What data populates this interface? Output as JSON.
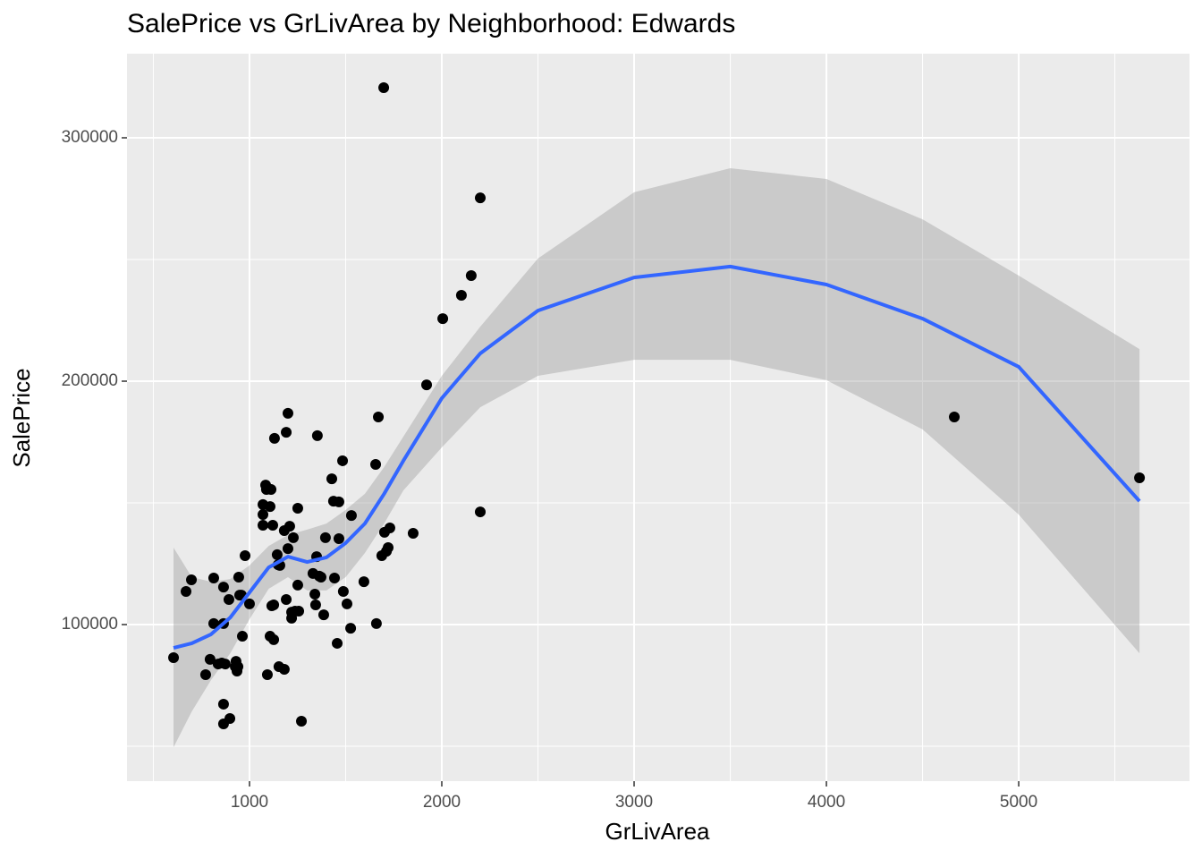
{
  "chart_data": {
    "type": "scatter",
    "title": "SalePrice vs GrLivArea by Neighborhood: Edwards",
    "x_label": "GrLivArea",
    "y_label": "SalePrice",
    "xlim": [
      363,
      5888
    ],
    "ylim": [
      35662,
      334559
    ],
    "xticks": [
      1000,
      2000,
      3000,
      4000,
      5000
    ],
    "yticks": [
      100000,
      200000,
      300000
    ],
    "x_minor_grid": [
      500,
      1500,
      2500,
      3500,
      4500,
      5500
    ],
    "y_minor_grid": [
      50000,
      150000,
      250000
    ],
    "grid": true,
    "color": "#000000",
    "x": [
      605,
      670,
      698,
      772,
      795,
      814,
      814,
      837,
      856,
      865,
      865,
      865,
      865,
      874,
      898,
      893,
      926,
      930,
      935,
      940,
      944,
      949,
      958,
      963,
      977,
      1000,
      1070,
      1070,
      1070,
      1084,
      1088,
      1093,
      1107,
      1107,
      1112,
      1116,
      1121,
      1126,
      1126,
      1130,
      1144,
      1149,
      1153,
      1158,
      1181,
      1181,
      1191,
      1191,
      1200,
      1200,
      1209,
      1219,
      1219,
      1228,
      1237,
      1251,
      1251,
      1256,
      1270,
      1330,
      1340,
      1344,
      1349,
      1353,
      1363,
      1372,
      1386,
      1395,
      1428,
      1437,
      1442,
      1456,
      1465,
      1465,
      1484,
      1488,
      1507,
      1526,
      1530,
      1595,
      1656,
      1660,
      1670,
      1688,
      1698,
      1702,
      1712,
      1721,
      1730,
      1851,
      1921,
      2005,
      2102,
      2153,
      2200,
      2200,
      4665,
      5628
    ],
    "y": [
      86400,
      113600,
      118400,
      79400,
      85700,
      100400,
      119100,
      83800,
      84200,
      100400,
      115400,
      67300,
      59200,
      83800,
      61400,
      110300,
      82700,
      84900,
      80900,
      82700,
      119500,
      112100,
      112100,
      95200,
      128300,
      108500,
      149300,
      145200,
      140800,
      157300,
      155500,
      79400,
      148500,
      95200,
      155500,
      107700,
      140800,
      93800,
      108100,
      176500,
      128700,
      124600,
      82700,
      124300,
      138600,
      81600,
      179000,
      110300,
      186800,
      131200,
      140400,
      105100,
      102600,
      135700,
      105500,
      116200,
      147800,
      105500,
      60300,
      121000,
      112500,
      108100,
      127900,
      177600,
      119900,
      119500,
      104000,
      135700,
      159900,
      150700,
      119100,
      92300,
      150400,
      135300,
      167300,
      113600,
      108500,
      98500,
      144800,
      117600,
      165800,
      100400,
      185300,
      128300,
      320600,
      137900,
      130100,
      131600,
      139700,
      137500,
      198500,
      225700,
      235300,
      243400,
      275300,
      146300,
      185300,
      160300
    ],
    "smooth": {
      "color": "#3366ff",
      "band_color": "#999999",
      "x": [
        605,
        700,
        800,
        900,
        1000,
        1100,
        1200,
        1300,
        1400,
        1500,
        1600,
        1700,
        1800,
        2000,
        2200,
        2500,
        3000,
        3500,
        4000,
        4500,
        5000,
        5628
      ],
      "y": [
        90400,
        92300,
        96000,
        102900,
        113200,
        123500,
        127900,
        125700,
        127600,
        133500,
        141500,
        153700,
        167300,
        193000,
        211400,
        229000,
        242600,
        247100,
        239700,
        225700,
        205900,
        150700
      ],
      "upper": [
        131600,
        119500,
        117600,
        118700,
        124300,
        132300,
        136800,
        139000,
        141500,
        147100,
        153700,
        164700,
        177200,
        202200,
        222400,
        250400,
        277600,
        287500,
        283100,
        266500,
        243400,
        213200
      ],
      "lower": [
        49600,
        64300,
        77200,
        88200,
        102200,
        114700,
        119500,
        114000,
        114000,
        119500,
        129400,
        141500,
        155100,
        172800,
        189300,
        202200,
        208800,
        208800,
        200400,
        180200,
        145200,
        88200
      ]
    }
  }
}
